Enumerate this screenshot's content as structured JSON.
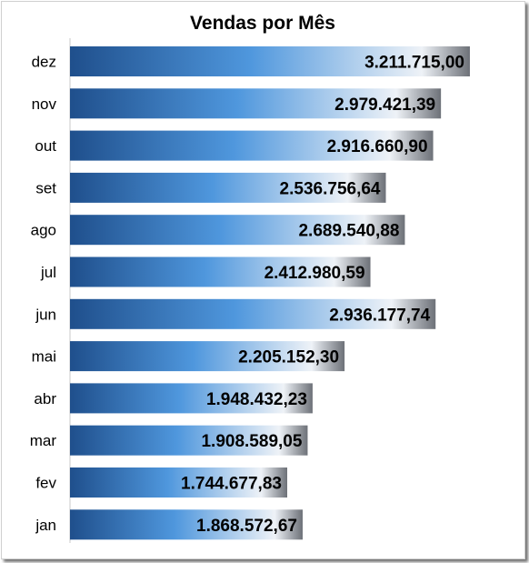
{
  "chart_data": {
    "type": "bar",
    "orientation": "horizontal",
    "title": "Vendas por Mês",
    "categories": [
      "dez",
      "nov",
      "out",
      "set",
      "ago",
      "jul",
      "jun",
      "mai",
      "abr",
      "mar",
      "fev",
      "jan"
    ],
    "values": [
      3211715.0,
      2979421.39,
      2916660.9,
      2536756.64,
      2689540.88,
      2412980.59,
      2936177.74,
      2205152.3,
      1948432.23,
      1908589.05,
      1744677.83,
      1868572.67
    ],
    "value_labels": [
      "3.211.715,00",
      "2.979.421,39",
      "2.916.660,90",
      "2.536.756,64",
      "2.689.540,88",
      "2.412.980,59",
      "2.936.177,74",
      "2.205.152,30",
      "1.948.432,23",
      "1.908.589,05",
      "1.744.677,83",
      "1.868.572,67"
    ],
    "xlim": [
      0,
      3650000
    ],
    "grid": false,
    "legend": "none",
    "colors": {
      "bar_dark": "#1f4f8c",
      "bar_mid": "#4f97dd",
      "bar_light": "#eef2f7",
      "bar_edge": "#6d7178"
    }
  }
}
